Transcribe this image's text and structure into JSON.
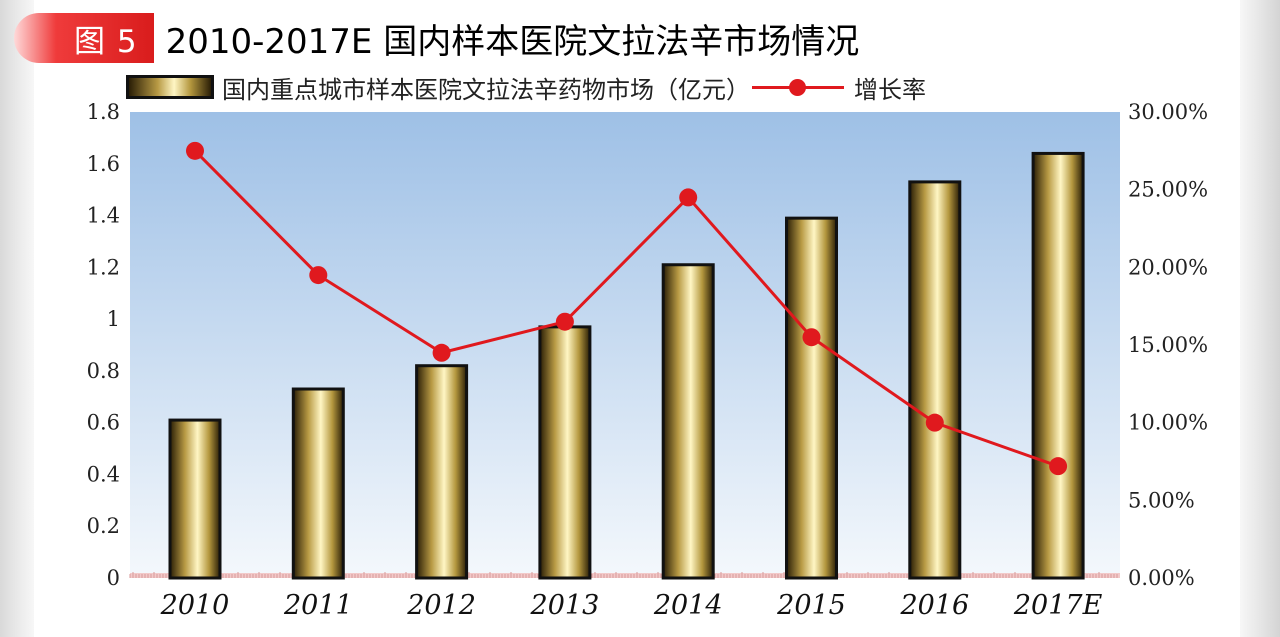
{
  "figure": {
    "badge": "图 5",
    "title": "2010-2017E 国内样本医院文拉法辛市场情况"
  },
  "legend": {
    "bar_label": "国内重点城市样本医院文拉法辛药物市场（亿元）",
    "line_label": "增长率"
  },
  "chart_data": {
    "type": "bar",
    "categories": [
      "2010",
      "2011",
      "2012",
      "2013",
      "2014",
      "2015",
      "2016",
      "2017E"
    ],
    "series": [
      {
        "name": "国内重点城市样本医院文拉法辛药物市场（亿元）",
        "type": "bar",
        "axis": "left",
        "values": [
          0.61,
          0.73,
          0.82,
          0.97,
          1.21,
          1.39,
          1.53,
          1.64
        ]
      },
      {
        "name": "增长率",
        "type": "line",
        "axis": "right",
        "values": [
          27.5,
          19.5,
          14.5,
          16.5,
          24.5,
          15.5,
          10.0,
          7.2
        ]
      }
    ],
    "left_axis": {
      "ylim": [
        0,
        1.8
      ],
      "ticks": [
        "0",
        "0.2",
        "0.4",
        "0.6",
        "0.8",
        "1",
        "1.2",
        "1.4",
        "1.6",
        "1.8"
      ]
    },
    "right_axis": {
      "ylim": [
        0,
        30
      ],
      "ticks": [
        "0.00%",
        "5.00%",
        "10.00%",
        "15.00%",
        "20.00%",
        "25.00%",
        "30.00%"
      ]
    },
    "colors": {
      "line": "#e0191e",
      "bar_highlight": "#fff6c4",
      "bar_mid": "#b89a44",
      "bar_dark": "#2a1e06",
      "plot_top": "#9ec0e6",
      "plot_bottom": "#f4f8fc"
    },
    "grid": false,
    "legend_position": "top"
  }
}
